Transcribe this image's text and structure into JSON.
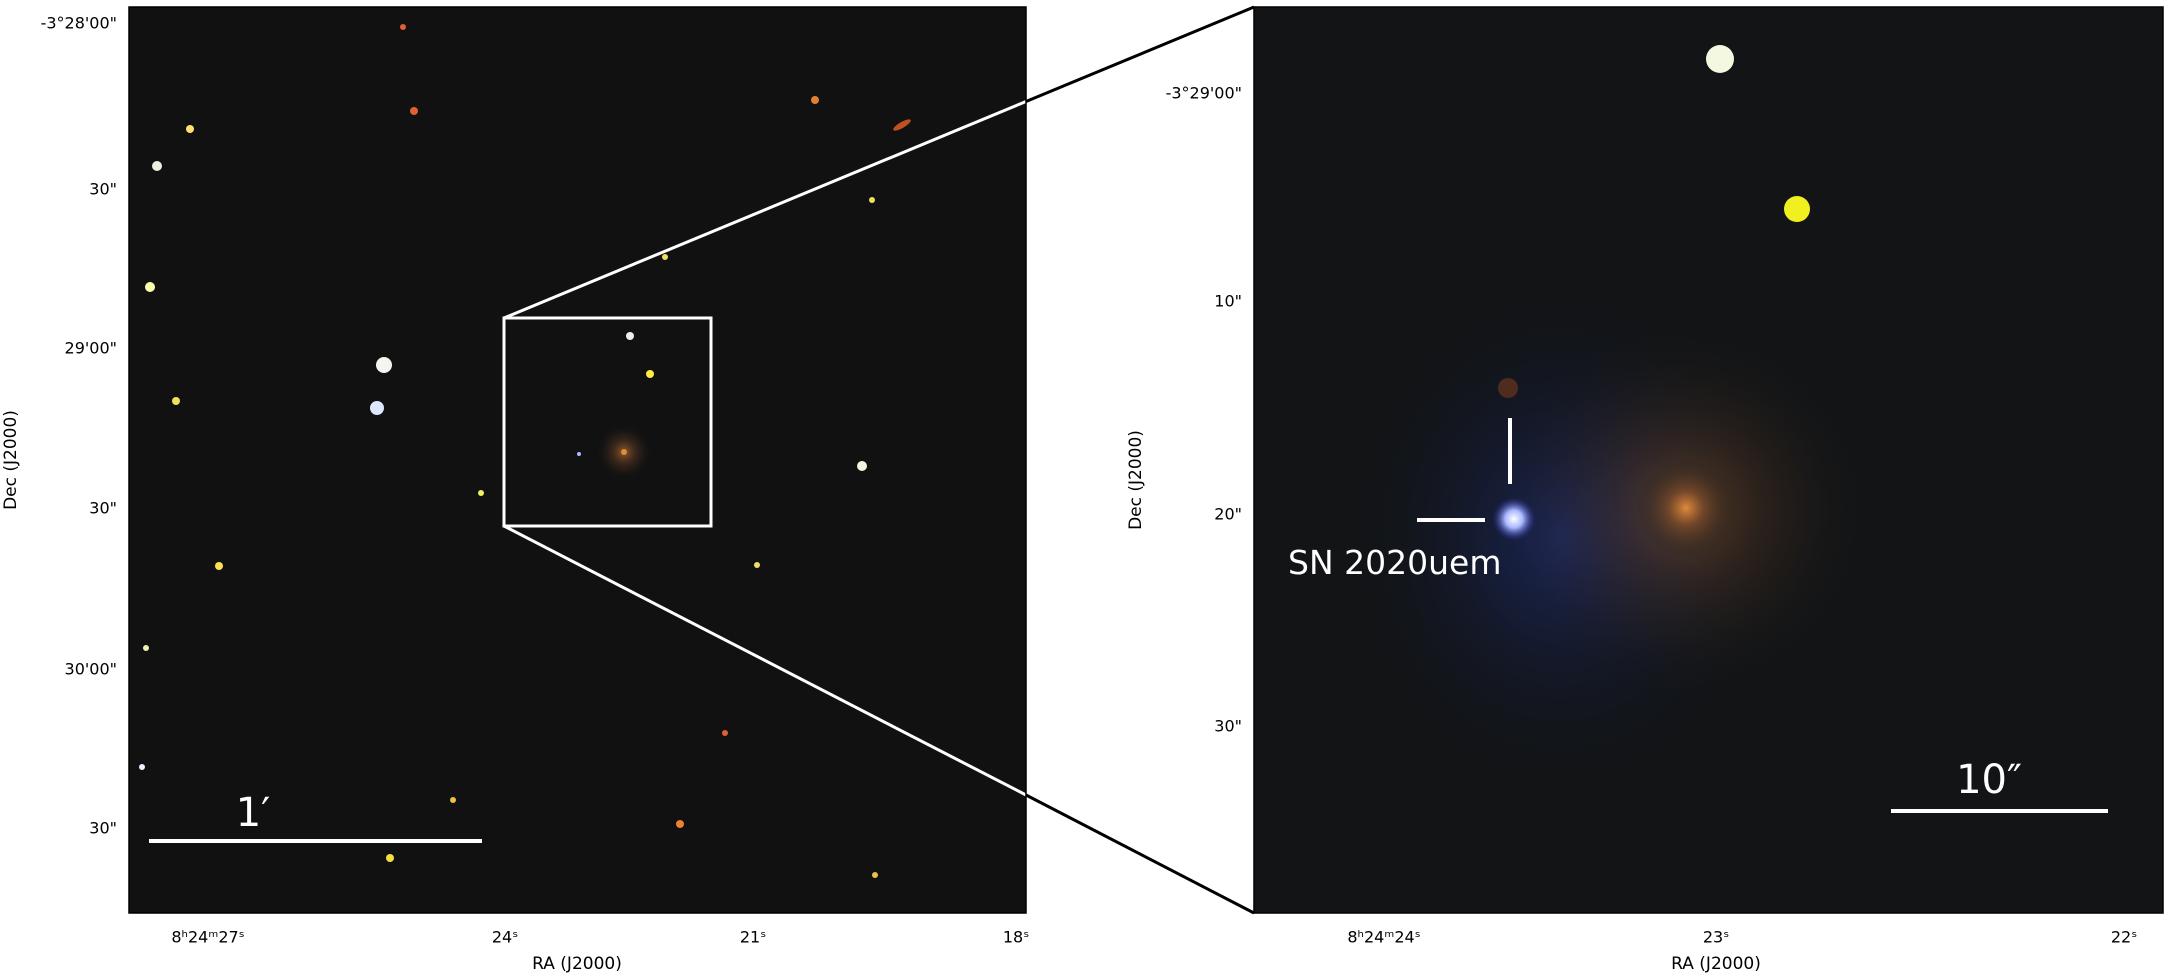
{
  "left_panel": {
    "y_ticks": [
      "-3°28'00\"",
      "30\"",
      "29'00\"",
      "30\"",
      "30'00\"",
      "30\""
    ],
    "x_ticks": [
      "8ʰ24ᵐ27ˢ",
      "24ˢ",
      "21ˢ",
      "18ˢ"
    ],
    "x_label": "RA (J2000)",
    "y_label": "Dec (J2000)",
    "scale_bar": "1′"
  },
  "right_panel": {
    "y_ticks": [
      "-3°29'00\"",
      "10\"",
      "20\"",
      "30\""
    ],
    "x_ticks": [
      "8ʰ24ᵐ24ˢ",
      "23ˢ",
      "22ˢ"
    ],
    "x_label": "RA (J2000)",
    "y_label": "Dec (J2000)",
    "scale_bar": "10″",
    "annotation": "SN 2020uem"
  }
}
